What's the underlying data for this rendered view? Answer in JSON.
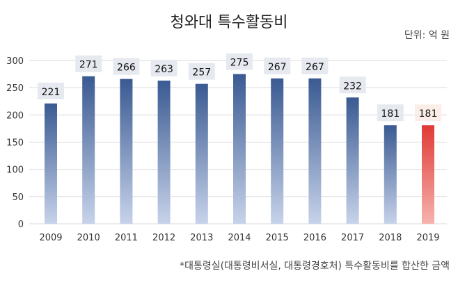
{
  "chart_data": {
    "type": "bar",
    "title": "청와대 특수활동비",
    "unit_label": "단위: 억 원",
    "footnote": "*대통령실(대통령비서실, 대통령경호처) 특수활동비를 합산한 금액",
    "categories": [
      "2009",
      "2010",
      "2011",
      "2012",
      "2013",
      "2014",
      "2015",
      "2016",
      "2017",
      "2018",
      "2019"
    ],
    "values": [
      221,
      271,
      266,
      263,
      257,
      275,
      267,
      267,
      232,
      181,
      181
    ],
    "ylim": [
      0,
      300
    ],
    "yticks": [
      0,
      50,
      100,
      150,
      200,
      250,
      300
    ],
    "grid": true,
    "colors": {
      "bar": "#3a5a92",
      "bar_light": "#c7d3ea",
      "highlight": "#e03a35",
      "highlight_light": "#f6b3ae",
      "label_box": "#e6e9ef",
      "highlight_label_box": "#fbeee8"
    },
    "highlight_index": 10
  }
}
